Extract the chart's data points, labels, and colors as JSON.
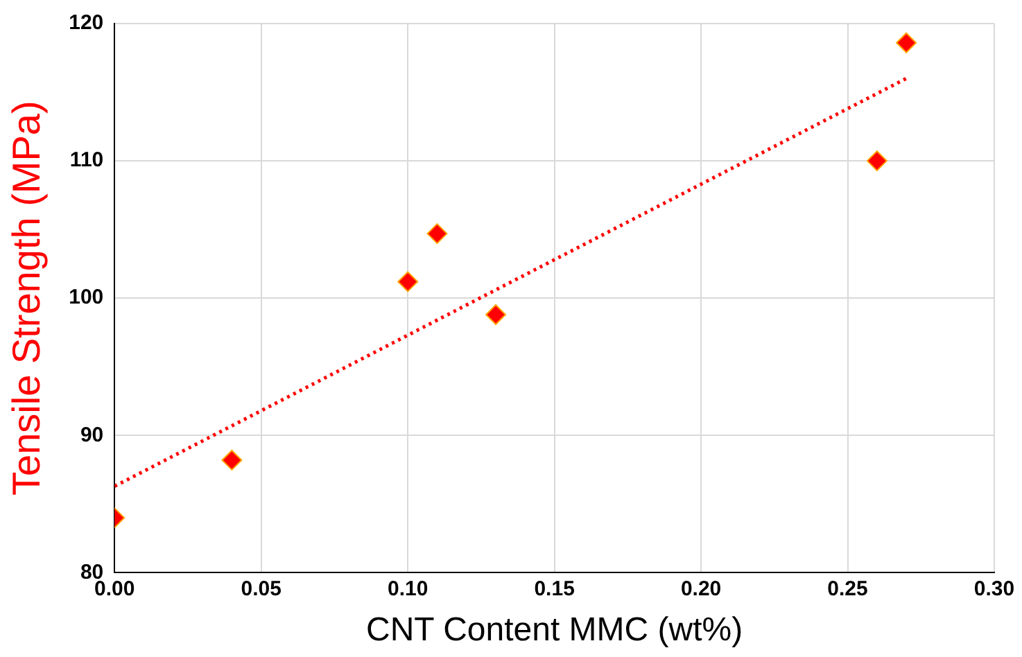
{
  "chart_data": {
    "type": "scatter",
    "xlabel": "CNT Content MMC (wt%)",
    "ylabel": "Tensile Strength (MPa)",
    "series": [
      {
        "color": "#ff0000",
        "marker": "diamond",
        "x": [
          0,
          0.04,
          0.1,
          0.11,
          0.13,
          0.26,
          0.27
        ],
        "values": [
          84.0,
          88.2,
          101.2,
          104.7,
          98.8,
          110.0,
          118.6
        ]
      },
      {
        "type": "line",
        "color": "#ff0000",
        "marker": "none",
        "line_style": "dotted",
        "x": [
          0,
          0.27
        ],
        "values": [
          86.3,
          116.0
        ]
      }
    ],
    "xlim": [
      0,
      0.3
    ],
    "xticks": [
      {
        "value": 0,
        "label": "0.00"
      },
      {
        "value": 0.05,
        "label": "0.05"
      },
      {
        "value": 0.1,
        "label": "0.10"
      },
      {
        "value": 0.15,
        "label": "0.15"
      },
      {
        "value": 0.2,
        "label": "0.20"
      },
      {
        "value": 0.25,
        "label": "0.25"
      },
      {
        "value": 0.3,
        "label": "0.30"
      }
    ],
    "ylim": [
      80,
      120
    ],
    "yticks": [
      80,
      90,
      100,
      110,
      120
    ],
    "grid": true,
    "legend": false
  }
}
